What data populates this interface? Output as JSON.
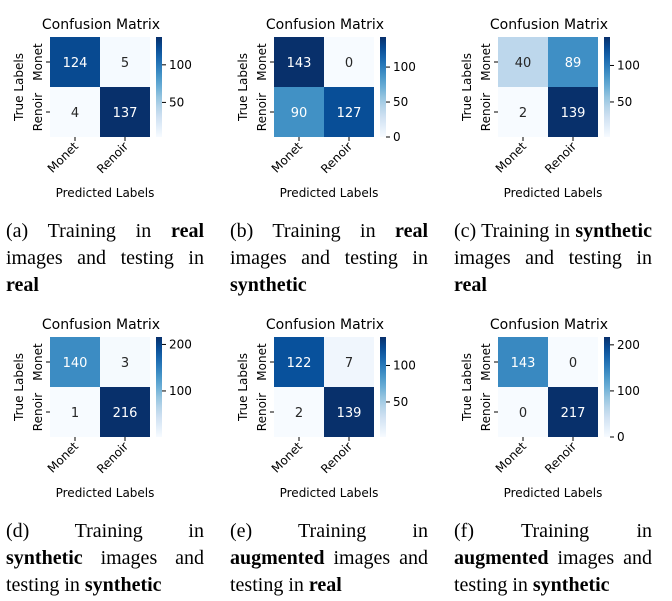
{
  "chart_data": [
    {
      "type": "heatmap",
      "title": "Confusion Matrix",
      "xlabel": "Predicted Labels",
      "ylabel": "True Labels",
      "x_categories": [
        "Monet",
        "Renoir"
      ],
      "y_categories": [
        "Monet",
        "Renoir"
      ],
      "values": [
        [
          124,
          5
        ],
        [
          4,
          137
        ]
      ],
      "colorbar_ticks": [
        50,
        100
      ],
      "colorbar_range": [
        4,
        137
      ],
      "caption": {
        "id": "(a)",
        "parts": [
          {
            "t": "Training in ",
            "b": false
          },
          {
            "t": "real",
            "b": true
          },
          {
            "t": " images and testing in ",
            "b": false
          },
          {
            "t": "real",
            "b": true
          }
        ]
      }
    },
    {
      "type": "heatmap",
      "title": "Confusion Matrix",
      "xlabel": "Predicted Labels",
      "ylabel": "True Labels",
      "x_categories": [
        "Monet",
        "Renoir"
      ],
      "y_categories": [
        "Monet",
        "Renoir"
      ],
      "values": [
        [
          143,
          0
        ],
        [
          90,
          127
        ]
      ],
      "colorbar_ticks": [
        0,
        50,
        100
      ],
      "colorbar_range": [
        0,
        143
      ],
      "caption": {
        "id": "(b)",
        "parts": [
          {
            "t": "Training in ",
            "b": false
          },
          {
            "t": "real",
            "b": true
          },
          {
            "t": " images and testing in ",
            "b": false
          },
          {
            "t": "synthetic",
            "b": true
          }
        ]
      }
    },
    {
      "type": "heatmap",
      "title": "Confusion Matrix",
      "xlabel": "Predicted Labels",
      "ylabel": "True Labels",
      "x_categories": [
        "Monet",
        "Renoir"
      ],
      "y_categories": [
        "Monet",
        "Renoir"
      ],
      "values": [
        [
          40,
          89
        ],
        [
          2,
          139
        ]
      ],
      "colorbar_ticks": [
        50,
        100
      ],
      "colorbar_range": [
        2,
        139
      ],
      "caption": {
        "id": "(c)",
        "parts": [
          {
            "t": "Training in ",
            "b": false
          },
          {
            "t": "synthetic",
            "b": true
          },
          {
            "t": " images and testing in ",
            "b": false
          },
          {
            "t": "real",
            "b": true
          }
        ]
      }
    },
    {
      "type": "heatmap",
      "title": "Confusion Matrix",
      "xlabel": "Predicted Labels",
      "ylabel": "True Labels",
      "x_categories": [
        "Monet",
        "Renoir"
      ],
      "y_categories": [
        "Monet",
        "Renoir"
      ],
      "values": [
        [
          140,
          3
        ],
        [
          1,
          216
        ]
      ],
      "colorbar_ticks": [
        100,
        200
      ],
      "colorbar_range": [
        1,
        216
      ],
      "caption": {
        "id": "(d)",
        "parts": [
          {
            "t": "Training in ",
            "b": false
          },
          {
            "t": "synthetic",
            "b": true
          },
          {
            "t": " images and testing in ",
            "b": false
          },
          {
            "t": "synthetic",
            "b": true
          }
        ]
      }
    },
    {
      "type": "heatmap",
      "title": "Confusion Matrix",
      "xlabel": "Predicted Labels",
      "ylabel": "True Labels",
      "x_categories": [
        "Monet",
        "Renoir"
      ],
      "y_categories": [
        "Monet",
        "Renoir"
      ],
      "values": [
        [
          122,
          7
        ],
        [
          2,
          139
        ]
      ],
      "colorbar_ticks": [
        50,
        100
      ],
      "colorbar_range": [
        2,
        139
      ],
      "caption": {
        "id": "(e)",
        "parts": [
          {
            "t": "Training in ",
            "b": false
          },
          {
            "t": "augmented",
            "b": true
          },
          {
            "t": " images and testing in ",
            "b": false
          },
          {
            "t": "real",
            "b": true
          }
        ]
      }
    },
    {
      "type": "heatmap",
      "title": "Confusion Matrix",
      "xlabel": "Predicted Labels",
      "ylabel": "True Labels",
      "x_categories": [
        "Monet",
        "Renoir"
      ],
      "y_categories": [
        "Monet",
        "Renoir"
      ],
      "values": [
        [
          143,
          0
        ],
        [
          0,
          217
        ]
      ],
      "colorbar_ticks": [
        0,
        100,
        200
      ],
      "colorbar_range": [
        0,
        217
      ],
      "caption": {
        "id": "(f)",
        "parts": [
          {
            "t": "Training in ",
            "b": false
          },
          {
            "t": "augmented",
            "b": true
          },
          {
            "t": " images and testing in ",
            "b": false
          },
          {
            "t": "synthetic",
            "b": true
          }
        ]
      }
    }
  ]
}
